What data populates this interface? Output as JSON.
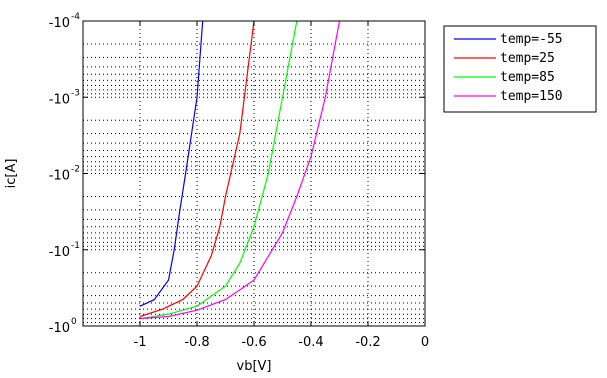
{
  "chart_data": {
    "type": "line",
    "xlabel": "vb[V]",
    "ylabel": "ic[A]",
    "xlim": [
      -1.2,
      0
    ],
    "ylim_magnitude": [
      0.0001,
      1
    ],
    "y_scale": "log (negative values, -10^-4 at top to -10^0 at bottom)",
    "xticks": [
      -1,
      -0.8,
      -0.6,
      -0.4,
      -0.2,
      0
    ],
    "xtick_labels": [
      "-1",
      "-0.8",
      "-0.6",
      "-0.4",
      "-0.2",
      "0"
    ],
    "yticks": [
      {
        "mantissa": "-10",
        "exp": "-4",
        "value": -0.0001
      },
      {
        "mantissa": "-10",
        "exp": "-3",
        "value": -0.001
      },
      {
        "mantissa": "-10",
        "exp": "-2",
        "value": -0.01
      },
      {
        "mantissa": "-10",
        "exp": "-1",
        "value": -0.1
      },
      {
        "mantissa": "-10",
        "exp": "0",
        "value": -1
      }
    ],
    "grid": true,
    "legend_position": "outside-right-top",
    "series": [
      {
        "name": "temp=-55",
        "color": "#0000ff",
        "x": [
          -1.0,
          -0.95,
          -0.9,
          -0.88,
          -0.86,
          -0.84,
          -0.8,
          -0.78
        ],
        "y": [
          -0.55,
          -0.45,
          -0.25,
          -0.1,
          -0.03,
          -0.01,
          -0.001,
          -0.0001
        ]
      },
      {
        "name": "temp=25",
        "color": "#ff0000",
        "x": [
          -1.0,
          -0.92,
          -0.85,
          -0.8,
          -0.75,
          -0.72,
          -0.7,
          -0.65,
          -0.6
        ],
        "y": [
          -0.75,
          -0.6,
          -0.45,
          -0.3,
          -0.12,
          -0.05,
          -0.02,
          -0.003,
          -0.0001
        ]
      },
      {
        "name": "temp=85",
        "color": "#00ff00",
        "x": [
          -1.0,
          -0.9,
          -0.8,
          -0.7,
          -0.65,
          -0.6,
          -0.55,
          -0.5,
          -0.45
        ],
        "y": [
          -0.8,
          -0.7,
          -0.55,
          -0.3,
          -0.15,
          -0.05,
          -0.01,
          -0.001,
          -0.0001
        ]
      },
      {
        "name": "temp=150",
        "color": "#ff00ff",
        "x": [
          -1.0,
          -0.9,
          -0.8,
          -0.7,
          -0.6,
          -0.5,
          -0.45,
          -0.4,
          -0.35,
          -0.3
        ],
        "y": [
          -0.8,
          -0.75,
          -0.62,
          -0.45,
          -0.25,
          -0.06,
          -0.02,
          -0.006,
          -0.001,
          -0.0001
        ]
      }
    ]
  }
}
